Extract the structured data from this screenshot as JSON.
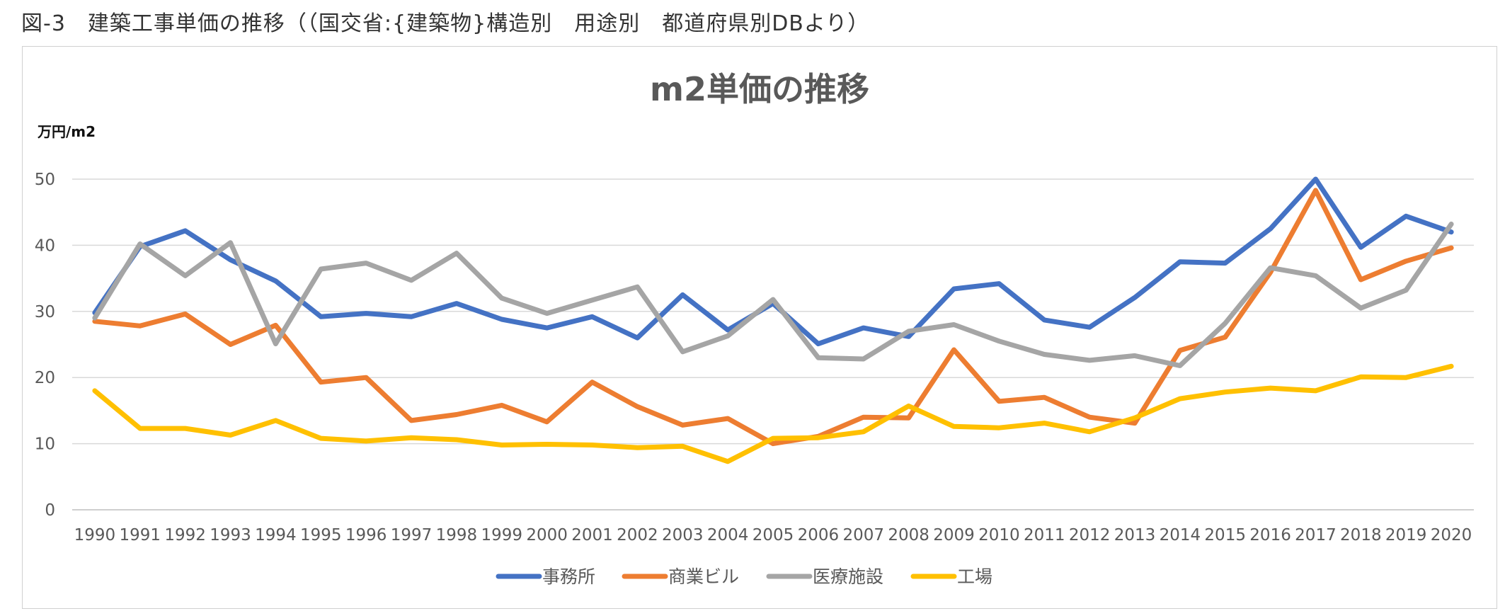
{
  "page": {
    "heading": "図-3　建築工事単価の推移（（国交省:{建築物}構造別　用途別　都道府県別DBより）"
  },
  "chart_data": {
    "type": "line",
    "title": "m2単価の推移",
    "ylabel": "万円/m2",
    "xlabel": "",
    "ylim": [
      0,
      50
    ],
    "yticks": [
      0,
      10,
      20,
      30,
      40,
      50
    ],
    "grid": true,
    "legend_position": "bottom",
    "categories": [
      "1990",
      "1991",
      "1992",
      "1993",
      "1994",
      "1995",
      "1996",
      "1997",
      "1998",
      "1999",
      "2000",
      "2001",
      "2002",
      "2003",
      "2004",
      "2005",
      "2006",
      "2007",
      "2008",
      "2009",
      "2010",
      "2011",
      "2012",
      "2013",
      "2014",
      "2015",
      "2016",
      "2017",
      "2018",
      "2019",
      "2020"
    ],
    "series": [
      {
        "name": "事務所",
        "color": "#4472C4",
        "values": [
          29.8,
          39.8,
          42.2,
          37.8,
          34.6,
          29.2,
          29.7,
          29.2,
          31.2,
          28.8,
          27.5,
          29.2,
          26.0,
          32.5,
          27.2,
          31.2,
          25.1,
          27.5,
          26.2,
          33.4,
          34.2,
          28.7,
          27.6,
          32.1,
          37.5,
          37.3,
          42.5,
          50.0,
          39.7,
          44.4,
          42.0
        ]
      },
      {
        "name": "商業ビル",
        "color": "#ED7D31",
        "values": [
          28.5,
          27.8,
          29.6,
          25.0,
          27.9,
          19.3,
          20.0,
          13.5,
          14.4,
          15.8,
          13.3,
          19.3,
          15.6,
          12.8,
          13.8,
          10.0,
          11.1,
          14.0,
          13.9,
          24.2,
          16.4,
          17.0,
          14.0,
          13.1,
          24.1,
          26.1,
          35.9,
          48.3,
          34.8,
          37.6,
          39.6
        ]
      },
      {
        "name": "医療施設",
        "color": "#A5A5A5",
        "values": [
          29.0,
          40.2,
          35.4,
          40.4,
          25.1,
          36.4,
          37.3,
          34.7,
          38.8,
          32.0,
          29.7,
          31.7,
          33.7,
          23.9,
          26.3,
          31.8,
          23.0,
          22.8,
          27.0,
          28.0,
          25.5,
          23.5,
          22.6,
          23.3,
          21.8,
          28.2,
          36.6,
          35.4,
          30.5,
          33.2,
          43.2
        ]
      },
      {
        "name": "工場",
        "color": "#FFC000",
        "values": [
          18.0,
          12.3,
          12.3,
          11.3,
          13.5,
          10.8,
          10.4,
          10.9,
          10.6,
          9.8,
          9.9,
          9.8,
          9.4,
          9.6,
          7.3,
          10.8,
          10.9,
          11.8,
          15.7,
          12.6,
          12.4,
          13.1,
          11.8,
          13.9,
          16.8,
          17.8,
          18.4,
          18.0,
          20.1,
          20.0,
          21.7
        ]
      }
    ]
  }
}
